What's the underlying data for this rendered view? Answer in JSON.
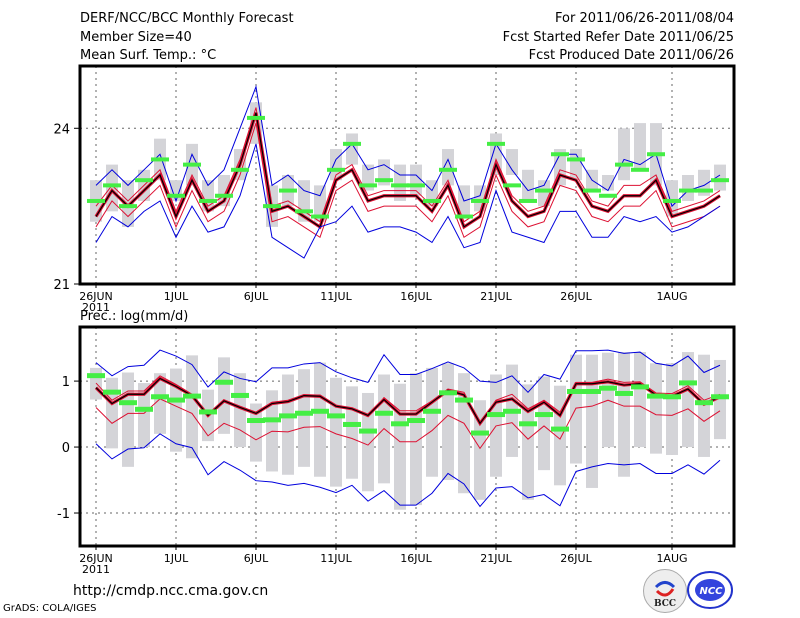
{
  "header": {
    "title": "DERF/NCC/BCC Monthly Forecast",
    "member_size": "Member Size=40",
    "variable": "Mean Surf. Temp.: °C",
    "period": "For 2011/06/26-2011/08/04",
    "started": "Fcst Started Refer Date 2011/06/25",
    "produced": "Fcst Produced Date 2011/06/26"
  },
  "footer": {
    "url": "http://cmdp.ncc.cma.gov.cn",
    "credit": "GrADS: COLA/IGES",
    "logo_bcc": "BCC",
    "logo_ncc": "NCC"
  },
  "colors": {
    "ensemble_range": "#0000dd",
    "spread": "#dd1133",
    "mean": "#000000",
    "obs_box": "#d4d4d8",
    "obs_marker": "#44ee44",
    "grid": "#666666"
  },
  "chart_data": [
    {
      "type": "line",
      "title": "Mean Surf. Temp.: °C",
      "xlabel": "",
      "ylabel": "",
      "ylim": [
        21,
        25.2
      ],
      "yticks": [
        21,
        24
      ],
      "x_start": "2011-06-26",
      "x_days": 40,
      "xtick_labels": [
        {
          "day": 0,
          "label": "26JUN",
          "sub": "2011"
        },
        {
          "day": 5,
          "label": "1JUL"
        },
        {
          "day": 10,
          "label": "6JUL"
        },
        {
          "day": 15,
          "label": "11JUL"
        },
        {
          "day": 20,
          "label": "16JUL"
        },
        {
          "day": 25,
          "label": "21JUL"
        },
        {
          "day": 30,
          "label": "26JUL"
        },
        {
          "day": 36,
          "label": "1AUG"
        }
      ],
      "grid": true,
      "series": [
        {
          "name": "ensemble_max",
          "values": [
            22.9,
            23.2,
            22.9,
            23.2,
            23.5,
            22.6,
            23.5,
            22.9,
            23.2,
            24.0,
            24.8,
            22.9,
            23.1,
            22.8,
            22.7,
            23.4,
            23.7,
            23.2,
            23.3,
            23.1,
            23.1,
            22.8,
            23.4,
            22.6,
            22.7,
            23.7,
            23.2,
            22.8,
            22.9,
            23.5,
            23.5,
            23.0,
            22.8,
            23.4,
            23.3,
            23.5,
            22.5,
            22.8,
            22.9,
            23.1
          ]
        },
        {
          "name": "spread_upper",
          "values": [
            22.5,
            22.9,
            22.6,
            22.9,
            23.2,
            22.4,
            23.1,
            22.5,
            22.7,
            23.4,
            24.4,
            22.5,
            22.6,
            22.4,
            22.2,
            23.1,
            23.3,
            22.7,
            22.8,
            22.8,
            22.8,
            22.5,
            23.0,
            22.2,
            22.4,
            23.4,
            22.7,
            22.4,
            22.5,
            23.2,
            23.1,
            22.6,
            22.5,
            22.9,
            22.9,
            23.1,
            22.4,
            22.5,
            22.6,
            22.8
          ]
        },
        {
          "name": "ensemble_mean",
          "values": [
            22.3,
            22.8,
            22.5,
            22.8,
            23.1,
            22.3,
            23.0,
            22.4,
            22.6,
            23.3,
            24.3,
            22.4,
            22.5,
            22.3,
            22.1,
            23.0,
            23.2,
            22.6,
            22.7,
            22.7,
            22.7,
            22.4,
            22.9,
            22.1,
            22.3,
            23.3,
            22.6,
            22.3,
            22.4,
            23.1,
            23.0,
            22.5,
            22.4,
            22.7,
            22.7,
            23.0,
            22.3,
            22.4,
            22.5,
            22.7
          ]
        },
        {
          "name": "spread_lower",
          "values": [
            22.1,
            22.6,
            22.3,
            22.6,
            22.9,
            22.1,
            22.8,
            22.2,
            22.4,
            23.1,
            24.1,
            22.2,
            22.3,
            22.1,
            21.9,
            22.8,
            23.0,
            22.4,
            22.5,
            22.5,
            22.5,
            22.2,
            22.7,
            21.9,
            22.1,
            23.1,
            22.4,
            22.1,
            22.2,
            22.9,
            22.8,
            22.3,
            22.2,
            22.5,
            22.5,
            22.8,
            22.1,
            22.2,
            22.3,
            22.5
          ]
        },
        {
          "name": "ensemble_min",
          "values": [
            21.8,
            22.3,
            22.1,
            22.4,
            22.6,
            21.9,
            22.5,
            22.0,
            22.1,
            22.7,
            23.7,
            21.9,
            21.7,
            21.5,
            22.1,
            22.2,
            22.5,
            22.0,
            22.1,
            22.1,
            22.0,
            21.8,
            22.3,
            21.7,
            21.8,
            22.8,
            22.0,
            21.9,
            21.8,
            22.4,
            22.4,
            21.9,
            21.9,
            22.3,
            22.2,
            22.3,
            22.0,
            22.1,
            22.3,
            22.5
          ]
        }
      ],
      "observed_boxes": {
        "low": [
          22.2,
          22.4,
          22.1,
          22.6,
          23.0,
          22.6,
          22.9,
          22.4,
          22.5,
          23.0,
          23.7,
          22.1,
          22.5,
          22.2,
          22.2,
          23.0,
          23.3,
          22.8,
          22.9,
          22.6,
          22.7,
          22.5,
          22.9,
          22.3,
          22.4,
          23.1,
          23.1,
          22.6,
          22.5,
          22.9,
          23.0,
          22.8,
          22.8,
          23.0,
          23.2,
          22.9,
          22.3,
          22.6,
          22.7,
          22.8
        ],
        "high": [
          23.0,
          23.3,
          23.0,
          23.2,
          23.8,
          23.0,
          23.7,
          23.0,
          23.1,
          23.6,
          24.5,
          22.9,
          23.1,
          23.0,
          22.9,
          23.6,
          23.9,
          23.3,
          23.4,
          23.3,
          23.3,
          23.0,
          23.6,
          22.9,
          22.9,
          23.9,
          23.6,
          23.2,
          23.0,
          23.6,
          23.6,
          23.2,
          23.1,
          24.0,
          24.1,
          24.1,
          23.0,
          23.1,
          23.2,
          23.3
        ]
      },
      "observed_markers": [
        22.6,
        22.9,
        22.5,
        23.0,
        23.4,
        22.7,
        23.3,
        22.6,
        22.7,
        23.2,
        24.2,
        22.5,
        22.8,
        22.4,
        22.3,
        23.2,
        23.7,
        22.9,
        23.0,
        22.9,
        22.9,
        22.6,
        23.2,
        22.3,
        22.6,
        23.7,
        22.9,
        22.6,
        22.8,
        23.5,
        23.4,
        22.8,
        22.7,
        23.3,
        23.2,
        23.5,
        22.6,
        22.8,
        22.8,
        23.0
      ]
    },
    {
      "type": "line",
      "title": "Prec.: log(mm/d)",
      "xlabel": "",
      "ylabel": "",
      "ylim": [
        -1.5,
        1.82
      ],
      "yticks": [
        -1,
        0,
        1
      ],
      "x_start": "2011-06-26",
      "x_days": 40,
      "xtick_labels": [
        {
          "day": 0,
          "label": "26JUN",
          "sub": "2011"
        },
        {
          "day": 5,
          "label": "1JUL"
        },
        {
          "day": 10,
          "label": "6JUL"
        },
        {
          "day": 15,
          "label": "11JUL"
        },
        {
          "day": 20,
          "label": "16JUL"
        },
        {
          "day": 25,
          "label": "21JUL"
        },
        {
          "day": 30,
          "label": "26JUL"
        },
        {
          "day": 36,
          "label": "1AUG"
        }
      ],
      "grid": true,
      "series": [
        {
          "name": "ensemble_max",
          "values": [
            1.28,
            1.08,
            1.22,
            1.24,
            1.47,
            1.38,
            1.25,
            0.91,
            1.14,
            1.04,
            0.99,
            1.2,
            1.2,
            1.26,
            1.28,
            1.14,
            1.05,
            0.98,
            1.4,
            1.1,
            1.1,
            1.19,
            1.29,
            1.2,
            1.0,
            0.98,
            1.08,
            0.83,
            1.1,
            1.03,
            1.46,
            1.46,
            1.47,
            1.42,
            1.44,
            1.27,
            1.23,
            1.38,
            1.13,
            1.24
          ]
        },
        {
          "name": "spread_upper",
          "values": [
            0.97,
            0.71,
            0.85,
            0.85,
            1.08,
            0.95,
            0.8,
            0.5,
            0.71,
            0.62,
            0.53,
            0.68,
            0.71,
            0.79,
            0.79,
            0.62,
            0.57,
            0.46,
            0.75,
            0.55,
            0.55,
            0.7,
            0.88,
            0.83,
            0.35,
            0.71,
            0.8,
            0.58,
            0.71,
            0.53,
            0.98,
            0.98,
            1.03,
            0.98,
            0.99,
            0.82,
            0.81,
            0.93,
            0.71,
            0.8
          ]
        },
        {
          "name": "ensemble_mean",
          "values": [
            0.9,
            0.66,
            0.8,
            0.8,
            1.04,
            0.92,
            0.78,
            0.48,
            0.7,
            0.6,
            0.51,
            0.66,
            0.69,
            0.78,
            0.77,
            0.62,
            0.58,
            0.48,
            0.72,
            0.5,
            0.5,
            0.68,
            0.86,
            0.79,
            0.36,
            0.68,
            0.73,
            0.54,
            0.68,
            0.48,
            0.96,
            0.96,
            0.99,
            0.94,
            0.96,
            0.79,
            0.77,
            0.88,
            0.65,
            0.76
          ]
        },
        {
          "name": "spread_lower",
          "values": [
            0.6,
            0.36,
            0.51,
            0.51,
            0.73,
            0.62,
            0.51,
            0.17,
            0.36,
            0.26,
            0.11,
            0.24,
            0.23,
            0.3,
            0.31,
            0.2,
            0.13,
            0.03,
            0.28,
            0.08,
            0.08,
            0.25,
            0.48,
            0.36,
            -0.02,
            0.32,
            0.37,
            0.12,
            0.32,
            0.12,
            0.59,
            0.62,
            0.71,
            0.62,
            0.62,
            0.49,
            0.48,
            0.58,
            0.39,
            0.55
          ]
        },
        {
          "name": "ensemble_min",
          "values": [
            0.05,
            -0.18,
            -0.03,
            -0.01,
            0.2,
            0.05,
            -0.01,
            -0.42,
            -0.22,
            -0.35,
            -0.51,
            -0.53,
            -0.58,
            -0.55,
            -0.61,
            -0.69,
            -0.58,
            -0.82,
            -0.66,
            -0.88,
            -0.88,
            -0.7,
            -0.4,
            -0.56,
            -0.9,
            -0.62,
            -0.6,
            -0.77,
            -0.72,
            -0.89,
            -0.37,
            -0.3,
            -0.25,
            -0.27,
            -0.25,
            -0.4,
            -0.4,
            -0.27,
            -0.41,
            -0.2
          ]
        },
        {
          "name": "observed_marker",
          "values": [
            1.09,
            0.84,
            0.68,
            0.58,
            0.77,
            0.72,
            0.78,
            0.54,
            0.99,
            0.79,
            0.41,
            0.42,
            0.48,
            0.52,
            0.55,
            0.48,
            0.35,
            0.25,
            0.52,
            0.36,
            0.41,
            0.55,
            0.83,
            0.72,
            0.22,
            0.5,
            0.55,
            0.36,
            0.5,
            0.28,
            0.85,
            0.85,
            0.9,
            0.82,
            0.92,
            0.78,
            0.77,
            0.98,
            0.68,
            0.77
          ]
        }
      ],
      "observed_boxes": {
        "low": [
          0.72,
          -0.02,
          -0.3,
          0.0,
          0.2,
          -0.07,
          -0.17,
          0.09,
          0.2,
          0.0,
          -0.22,
          -0.37,
          -0.42,
          -0.3,
          -0.45,
          -0.6,
          -0.48,
          -0.67,
          -0.55,
          -0.95,
          -0.88,
          -0.45,
          -0.5,
          -0.7,
          -0.8,
          -0.45,
          -0.15,
          -0.8,
          -0.35,
          -0.58,
          -0.25,
          -0.62,
          0.0,
          -0.45,
          0.0,
          -0.1,
          -0.12,
          0.0,
          -0.15,
          0.12
        ],
        "high": [
          1.2,
          1.05,
          1.13,
          0.97,
          1.12,
          1.19,
          1.39,
          0.87,
          1.36,
          1.12,
          0.66,
          0.86,
          1.1,
          1.18,
          1.28,
          1.05,
          0.92,
          0.82,
          1.1,
          0.96,
          1.12,
          1.2,
          1.27,
          1.12,
          0.71,
          1.1,
          1.25,
          0.95,
          1.07,
          0.93,
          1.4,
          1.4,
          1.43,
          1.44,
          1.44,
          1.27,
          1.27,
          1.44,
          1.4,
          1.32
        ]
      }
    }
  ]
}
